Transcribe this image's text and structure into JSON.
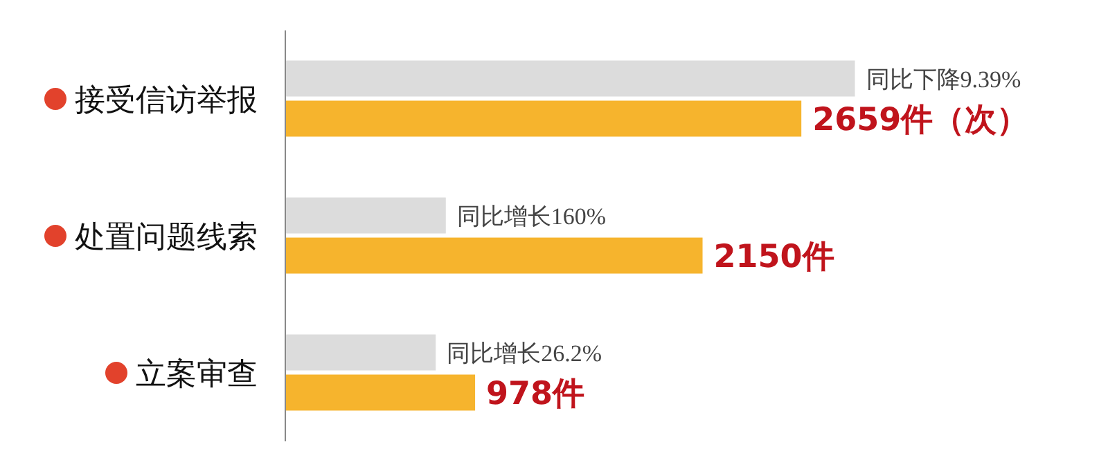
{
  "chart_data": {
    "type": "bar",
    "orientation": "horizontal",
    "categories": [
      "接受信访举报",
      "处置问题线索",
      "立案审查"
    ],
    "series": [
      {
        "color": "#dcdcdc",
        "values": [
          2935,
          827,
          775
        ],
        "value_labels": [
          "同比下降9.39%",
          "同比增长160%",
          "同比增长26.2%"
        ]
      },
      {
        "color": "#f6b42d",
        "values": [
          2659,
          2150,
          978
        ],
        "value_labels": [
          "2659件（次）",
          "2150件",
          "978件"
        ]
      }
    ],
    "tick_labels": "y"
  }
}
